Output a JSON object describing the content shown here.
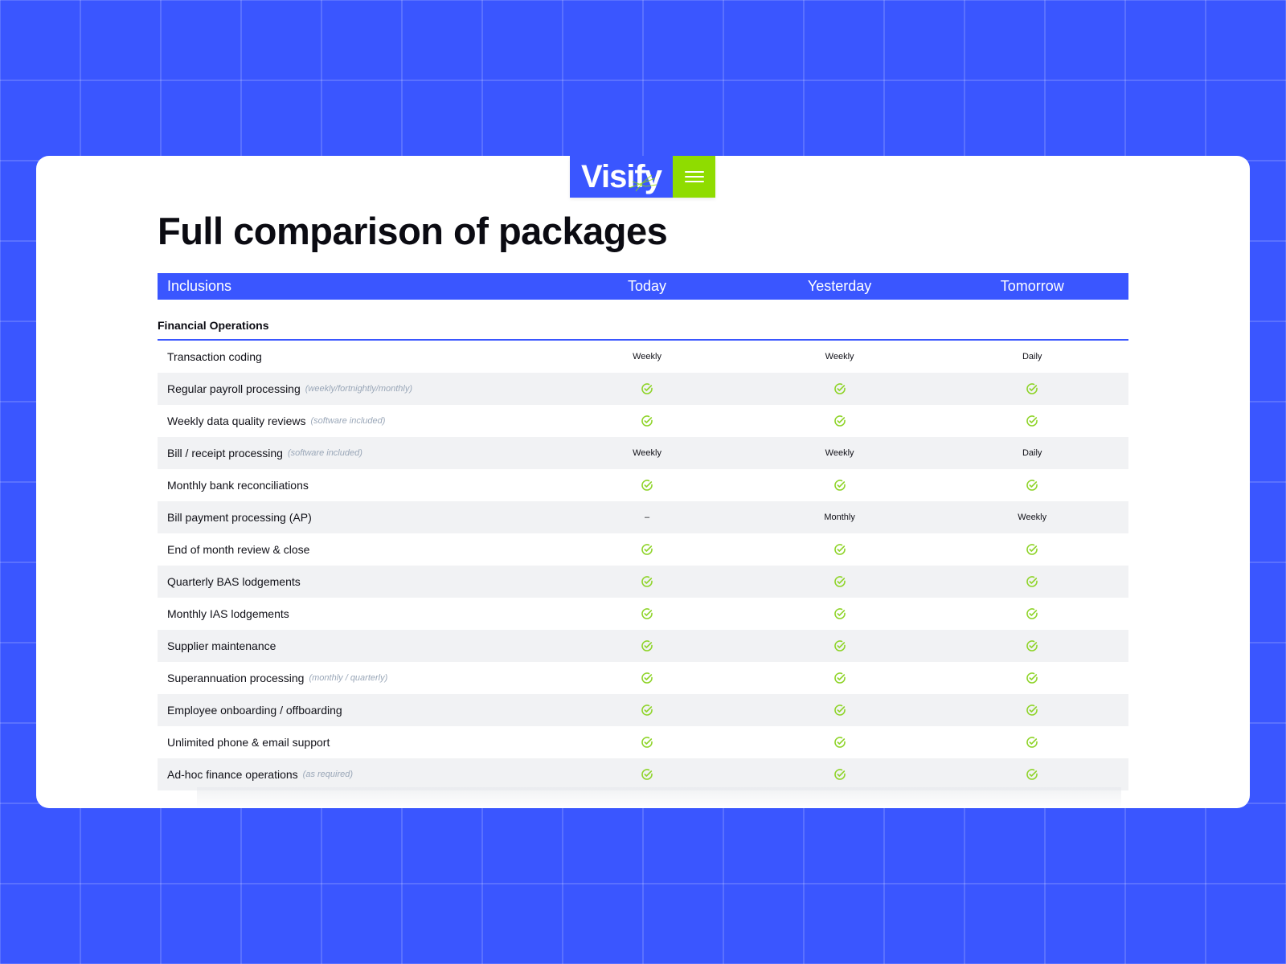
{
  "brand": {
    "logo_text": "Visify",
    "menu_icon": "hamburger-menu-icon",
    "colors": {
      "primary_blue": "#3a56ff",
      "lime": "#8fdc00",
      "check_green": "#8fd42a",
      "row_shade": "#f1f2f4"
    }
  },
  "page": {
    "title": "Full comparison of packages"
  },
  "table": {
    "headers": [
      "Inclusions",
      "Today",
      "Yesterday",
      "Tomorrow"
    ],
    "category": "Financial Operations",
    "rows": [
      {
        "name": "Transaction coding",
        "note": "",
        "values": [
          "Weekly",
          "Weekly",
          "Daily"
        ]
      },
      {
        "name": "Regular payroll processing",
        "note": "(weekly/fortnightly/monthly)",
        "values": [
          "check",
          "check",
          "check"
        ]
      },
      {
        "name": "Weekly data quality reviews",
        "note": "(software included)",
        "values": [
          "check",
          "check",
          "check"
        ]
      },
      {
        "name": "Bill / receipt processing",
        "note": "(software included)",
        "values": [
          "Weekly",
          "Weekly",
          "Daily"
        ]
      },
      {
        "name": "Monthly bank reconciliations",
        "note": "",
        "values": [
          "check",
          "check",
          "check"
        ]
      },
      {
        "name": "Bill payment processing (AP)",
        "note": "",
        "values": [
          "–",
          "Monthly",
          "Weekly"
        ]
      },
      {
        "name": "End of month review & close",
        "note": "",
        "values": [
          "check",
          "check",
          "check"
        ]
      },
      {
        "name": "Quarterly BAS lodgements",
        "note": "",
        "values": [
          "check",
          "check",
          "check"
        ]
      },
      {
        "name": "Monthly IAS lodgements",
        "note": "",
        "values": [
          "check",
          "check",
          "check"
        ]
      },
      {
        "name": "Supplier maintenance",
        "note": "",
        "values": [
          "check",
          "check",
          "check"
        ]
      },
      {
        "name": "Superannuation processing",
        "note": "(monthly / quarterly)",
        "values": [
          "check",
          "check",
          "check"
        ]
      },
      {
        "name": "Employee onboarding / offboarding",
        "note": "",
        "values": [
          "check",
          "check",
          "check"
        ]
      },
      {
        "name": "Unlimited phone & email support",
        "note": "",
        "values": [
          "check",
          "check",
          "check"
        ]
      },
      {
        "name": "Ad-hoc finance operations",
        "note": "(as required)",
        "values": [
          "check",
          "check",
          "check"
        ]
      }
    ]
  }
}
